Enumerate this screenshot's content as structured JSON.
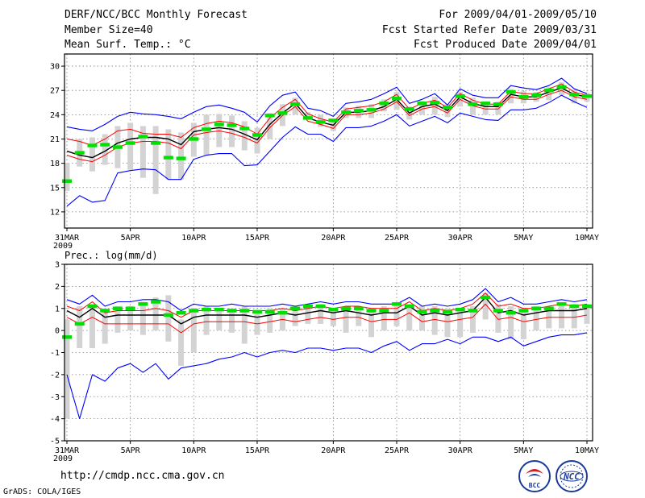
{
  "header": {
    "title": "DERF/NCC/BCC Monthly Forecast",
    "member_size": "Member Size=40",
    "variable_top": "Mean Surf. Temp.: °C",
    "period": "For 2009/04/01-2009/05/10",
    "started": "Fcst Started Refer Date 2009/03/31",
    "produced": "Fcst Produced Date 2009/04/01"
  },
  "footer": {
    "url": "http://cmdp.ncc.cma.gov.cn",
    "credit": "GrADS: COLA/IGES",
    "logo_left_text": "BCC",
    "logo_right_text": "NCC"
  },
  "colors": {
    "envelope": "#0000ff",
    "spread": "#ff0000",
    "mean": "#000000",
    "box": "#d3d3d3",
    "obs": "#00e000"
  },
  "chart_data": [
    {
      "type": "line",
      "title": "Mean Surf. Temp.: °C",
      "x_ticks": [
        "31MAR",
        "5APR",
        "10APR",
        "15APR",
        "20APR",
        "25APR",
        "30APR",
        "5MAY",
        "10MAY"
      ],
      "x_year": "2009",
      "xlim": [
        0,
        40
      ],
      "ylim": [
        10,
        31.5
      ],
      "y_ticks": [
        12,
        15,
        18,
        21,
        24,
        27,
        30
      ],
      "series": [
        {
          "name": "max",
          "values": [
            22.5,
            22.2,
            22,
            22.8,
            23.8,
            24.3,
            24.1,
            24,
            23.8,
            23.5,
            24.3,
            25,
            25.2,
            24.8,
            24.3,
            23.1,
            25.1,
            26.4,
            26.8,
            24.8,
            24.5,
            23.8,
            25.4,
            25.6,
            25.9,
            26.6,
            27.4,
            25.4,
            25.9,
            26.6,
            25.2,
            27.2,
            26.4,
            26.1,
            26.1,
            27.6,
            27.3,
            27.1,
            27.6,
            28.5,
            27.2,
            26.6
          ]
        },
        {
          "name": "upper",
          "values": [
            21,
            20.7,
            20.2,
            21,
            22,
            22.2,
            21.7,
            21.6,
            21.6,
            21.2,
            22.4,
            22.9,
            23.2,
            23,
            22.5,
            21.6,
            23.6,
            24.9,
            25.9,
            24.1,
            23.5,
            23.1,
            24.7,
            24.9,
            25.1,
            25.6,
            26.5,
            24.7,
            25.4,
            25.8,
            24.9,
            26.6,
            25.8,
            25.3,
            25.3,
            26.9,
            26.6,
            26.6,
            27.2,
            27.8,
            26.8,
            26.4
          ]
        },
        {
          "name": "mean",
          "values": [
            19.5,
            19,
            18.7,
            19.5,
            20.5,
            21,
            21.2,
            21.2,
            21,
            20.3,
            21.9,
            22.2,
            22.4,
            22.2,
            21.6,
            20.9,
            22.8,
            24.2,
            25.4,
            23.6,
            23.1,
            22.7,
            24.3,
            24.3,
            24.5,
            25,
            25.9,
            24.2,
            25,
            25.3,
            24.5,
            26.2,
            25.4,
            25,
            25,
            26.5,
            26.2,
            26.2,
            26.8,
            27.3,
            26.5,
            26.2
          ]
        },
        {
          "name": "lower",
          "values": [
            19,
            18.5,
            18.2,
            19,
            20,
            20.5,
            20.7,
            20.7,
            20.5,
            19.8,
            21.5,
            21.8,
            22,
            21.7,
            21.2,
            20.5,
            22.4,
            23.9,
            25,
            23.2,
            22.8,
            22.3,
            24,
            24,
            24.2,
            24.7,
            25.6,
            23.9,
            24.7,
            25,
            24.2,
            25.9,
            25.1,
            24.7,
            24.7,
            26.2,
            25.9,
            25.9,
            26.5,
            27,
            26.2,
            25.9
          ]
        },
        {
          "name": "min",
          "values": [
            12.7,
            14,
            13.2,
            13.4,
            16.8,
            17.1,
            17.3,
            17.2,
            16,
            16,
            18.5,
            19,
            19.2,
            19.2,
            17.7,
            17.8,
            19.5,
            21.2,
            22.5,
            21.6,
            21.6,
            20.7,
            22.4,
            22.4,
            22.6,
            23.2,
            24,
            22.6,
            23.2,
            23.8,
            23,
            24.2,
            23.8,
            23.4,
            23.3,
            24.6,
            24.6,
            24.8,
            25.5,
            26.4,
            25.6,
            24.9
          ]
        },
        {
          "name": "obs",
          "values": [
            15.8,
            19.3,
            20.2,
            20.3,
            20,
            20.5,
            21.3,
            20.5,
            18.7,
            18.6,
            21,
            22.2,
            22.8,
            22.7,
            22.3,
            21.5,
            23.9,
            24.2,
            25.3,
            23.6,
            23.1,
            23.3,
            24.3,
            24.5,
            24.6,
            25.4,
            26,
            24.7,
            25.4,
            25.5,
            24.9,
            26.3,
            25.3,
            25.4,
            25.3,
            26.8,
            26.2,
            26.4,
            27,
            27.4,
            26.5,
            26.3
          ]
        },
        {
          "name": "box_high",
          "values": [
            18,
            21,
            21.2,
            21.6,
            22.6,
            23,
            22.6,
            22.6,
            22.2,
            21.8,
            23,
            24,
            24.1,
            23.9,
            23.2,
            22.4,
            24.2,
            25.3,
            26.1,
            24.3,
            24,
            23.4,
            24.9,
            25.1,
            25.3,
            25.9,
            26.8,
            25,
            25.7,
            26.2,
            25.3,
            26.8,
            26.1,
            25.6,
            25.6,
            27.2,
            26.9,
            26.8,
            27.4,
            28,
            27.1,
            26.7
          ]
        },
        {
          "name": "box_low",
          "values": [
            14.6,
            17.6,
            17,
            17.8,
            17.4,
            17.2,
            16.2,
            14.2,
            16,
            16,
            18.8,
            19,
            20,
            20,
            19.6,
            19.2,
            21,
            22.6,
            24,
            23.5,
            22.5,
            22,
            23.6,
            23.6,
            23.6,
            24.4,
            24.6,
            23.4,
            24,
            24,
            23.7,
            25,
            24,
            24,
            24,
            25.4,
            25.4,
            25.6,
            25.8,
            26.4,
            25.4,
            25.6
          ]
        }
      ]
    },
    {
      "type": "line",
      "title": "Prec.: log(mm/d)",
      "x_ticks": [
        "31MAR",
        "5APR",
        "10APR",
        "15APR",
        "20APR",
        "25APR",
        "30APR",
        "5MAY",
        "10MAY"
      ],
      "x_year": "2009",
      "xlim": [
        0,
        40
      ],
      "ylim": [
        -5,
        3
      ],
      "y_ticks": [
        3,
        2,
        1,
        0,
        -1,
        -2,
        -3,
        -4,
        -5
      ],
      "series": [
        {
          "name": "max",
          "values": [
            1.4,
            1.2,
            1.6,
            1.1,
            1.3,
            1.3,
            1.4,
            1.4,
            1.3,
            0.9,
            1.2,
            1.1,
            1.1,
            1.2,
            1.1,
            1.1,
            1.1,
            1.2,
            1.1,
            1.2,
            1.3,
            1.2,
            1.3,
            1.3,
            1.2,
            1.2,
            1.2,
            1.5,
            1.1,
            1.2,
            1.1,
            1.2,
            1.4,
            1.9,
            1.3,
            1.5,
            1.2,
            1.2,
            1.3,
            1.4,
            1.3,
            1.4
          ]
        },
        {
          "name": "upper",
          "values": [
            1.1,
            0.9,
            1.3,
            0.8,
            0.9,
            0.9,
            0.9,
            1,
            0.9,
            0.6,
            0.9,
            0.9,
            0.9,
            0.9,
            0.9,
            0.9,
            0.9,
            1,
            0.9,
            1,
            1.1,
            1,
            1.1,
            1.1,
            1,
            1,
            1,
            1.3,
            0.9,
            1,
            0.9,
            1,
            1.2,
            1.7,
            1.1,
            1.2,
            1,
            1,
            1.1,
            1.2,
            1.1,
            1.2
          ]
        },
        {
          "name": "mean",
          "values": [
            0.9,
            0.6,
            1,
            0.6,
            0.7,
            0.7,
            0.7,
            0.7,
            0.7,
            0.3,
            0.6,
            0.7,
            0.7,
            0.7,
            0.7,
            0.6,
            0.7,
            0.8,
            0.7,
            0.8,
            0.9,
            0.8,
            0.9,
            0.8,
            0.7,
            0.8,
            0.8,
            1.1,
            0.7,
            0.8,
            0.7,
            0.8,
            0.9,
            1.5,
            0.8,
            0.9,
            0.7,
            0.8,
            0.9,
            0.9,
            0.9,
            1
          ]
        },
        {
          "name": "lower",
          "values": [
            0.6,
            0.3,
            0.6,
            0.3,
            0.3,
            0.3,
            0.3,
            0.3,
            0.3,
            -0.1,
            0.3,
            0.4,
            0.4,
            0.4,
            0.4,
            0.3,
            0.4,
            0.5,
            0.4,
            0.5,
            0.6,
            0.5,
            0.6,
            0.6,
            0.4,
            0.5,
            0.5,
            0.8,
            0.4,
            0.5,
            0.4,
            0.5,
            0.6,
            1.2,
            0.5,
            0.6,
            0.4,
            0.5,
            0.6,
            0.6,
            0.6,
            0.7
          ]
        },
        {
          "name": "min",
          "values": [
            -2,
            -4,
            -2,
            -2.3,
            -1.7,
            -1.5,
            -1.9,
            -1.5,
            -2.2,
            -1.7,
            -1.6,
            -1.5,
            -1.3,
            -1.2,
            -1,
            -1.2,
            -1,
            -0.9,
            -1,
            -0.8,
            -0.8,
            -0.9,
            -0.8,
            -0.8,
            -1,
            -0.7,
            -0.5,
            -0.9,
            -0.6,
            -0.6,
            -0.4,
            -0.6,
            -0.3,
            -0.3,
            -0.5,
            -0.3,
            -0.7,
            -0.5,
            -0.3,
            -0.2,
            -0.2,
            -0.1
          ]
        },
        {
          "name": "obs",
          "values": [
            -0.3,
            0.3,
            1.1,
            0.9,
            1,
            1,
            1.2,
            1.3,
            0.7,
            0.8,
            0.9,
            0.95,
            0.95,
            0.9,
            0.9,
            0.85,
            0.85,
            0.8,
            1,
            1.1,
            1.1,
            0.95,
            1,
            1,
            0.9,
            0.9,
            1.2,
            1.1,
            0.85,
            0.9,
            0.85,
            0.95,
            0.9,
            1.5,
            0.9,
            0.8,
            0.9,
            1,
            1,
            1.2,
            1.1,
            1.1
          ]
        },
        {
          "name": "box_high",
          "values": [
            0.5,
            1.1,
            1.2,
            1,
            1.1,
            1.1,
            1.3,
            1.5,
            1.6,
            0.5,
            1,
            1.1,
            1,
            1,
            1.1,
            0.9,
            1,
            1,
            1.1,
            1.1,
            1.2,
            1,
            1.1,
            1.1,
            1,
            1.1,
            1.2,
            1.2,
            1.1,
            1.1,
            1,
            1,
            1.1,
            1.7,
            1.2,
            1.1,
            1,
            1.1,
            1.1,
            1.2,
            1.2,
            1.2
          ]
        },
        {
          "name": "box_low",
          "values": [
            -4,
            -0.8,
            -0.8,
            -0.6,
            -0.1,
            0,
            -0.2,
            0,
            -0.5,
            -1.6,
            -1,
            -0.2,
            0,
            -0.1,
            -0.6,
            -0.2,
            -0.1,
            0,
            0.2,
            0.3,
            0.3,
            0.2,
            -0.1,
            0.2,
            -0.3,
            0,
            0.2,
            0,
            0,
            -0.2,
            -0.3,
            -0.3,
            -0.1,
            0.5,
            -0.1,
            -0.4,
            -0.4,
            0,
            0.1,
            0.1,
            0.1,
            0.3
          ]
        }
      ]
    }
  ]
}
